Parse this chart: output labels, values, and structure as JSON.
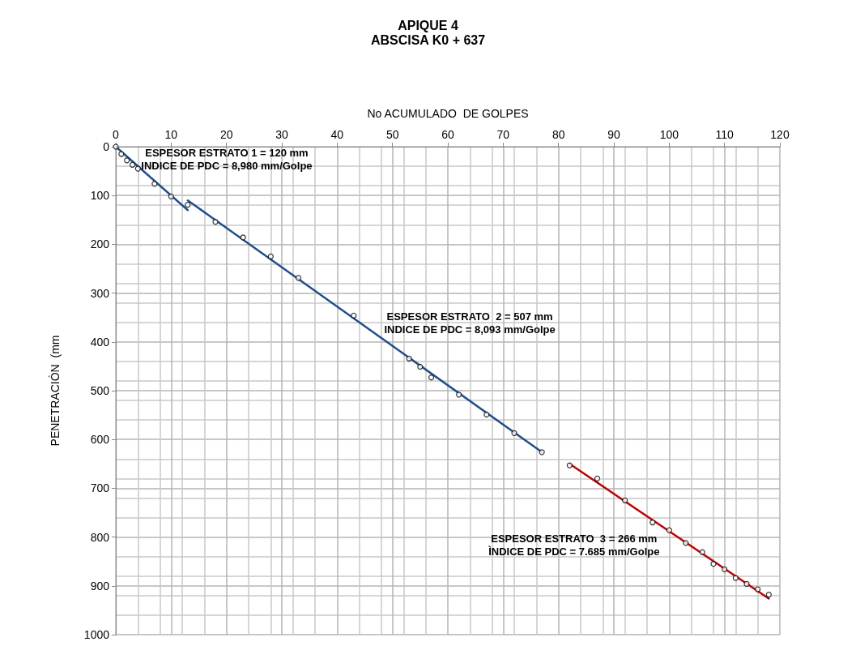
{
  "chart_data": {
    "type": "scatter",
    "title": "APIQUE 4",
    "subtitle": "ABSCISA K0 + 637",
    "xlabel": "No ACUMULADO  DE GOLPES",
    "ylabel": "PENETRACIÓN  (mm",
    "xlim": [
      0,
      120
    ],
    "xticks": [
      0,
      10,
      20,
      30,
      40,
      50,
      60,
      70,
      80,
      90,
      100,
      110,
      120
    ],
    "ylim": [
      1000,
      0
    ],
    "yticks": [
      0,
      100,
      200,
      300,
      400,
      500,
      600,
      700,
      800,
      900,
      1000
    ],
    "grid": true,
    "marker": "circle",
    "series": [
      {
        "color": "#000000",
        "x": [
          0,
          1,
          2,
          3,
          4,
          7,
          10,
          13,
          18,
          23,
          28,
          33,
          43,
          53,
          55,
          57,
          62,
          67,
          72,
          77,
          82,
          87,
          92,
          97,
          100,
          103,
          106,
          108,
          110,
          112,
          114,
          116,
          118
        ],
        "values": [
          0,
          15,
          28,
          37,
          45,
          76,
          102,
          119,
          154,
          186,
          225,
          269,
          346,
          434,
          451,
          473,
          508,
          549,
          587,
          626,
          653,
          680,
          725,
          770,
          786,
          812,
          831,
          855,
          866,
          884,
          896,
          907,
          918
        ]
      },
      {
        "type": "line",
        "color": "#1f4e8c",
        "marker": "none",
        "x": [
          0,
          13
        ],
        "values": [
          0,
          130
        ]
      },
      {
        "type": "line",
        "color": "#1f4e8c",
        "marker": "none",
        "x": [
          13,
          77
        ],
        "values": [
          110,
          626
        ]
      },
      {
        "type": "line",
        "color": "#c00000",
        "marker": "none",
        "x": [
          82,
          118
        ],
        "values": [
          650,
          926
        ]
      }
    ],
    "annotations": [
      "ESPESOR ESTRATO 1 = 120 mm\nINDICE DE PDC = 8,980 mm/Golpe",
      "ESPESOR ESTRATO  2 = 507 mm\nINDICE DE PDC = 8,093 mm/Golpe",
      "ESPESOR ESTRATO  3 = 266 mm\nÌNDICE DE PDC = 7.685 mm/Golpe"
    ]
  }
}
